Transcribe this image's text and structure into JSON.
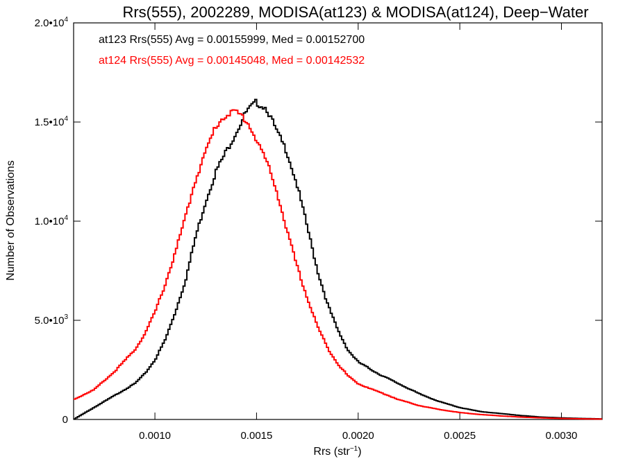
{
  "chart_data": {
    "type": "line",
    "title": "Rrs(555), 2002289, MODISA(at123) & MODISA(at124), Deep−Water",
    "xlabel": "Rrs (str",
    "xlabel_sup": "−1",
    "xlabel_close": ")",
    "ylabel": "Number of Observations",
    "xlim": [
      0.0006,
      0.0032
    ],
    "ylim": [
      0,
      20000
    ],
    "x_ticks": [
      {
        "value": 0.001,
        "label": "0.0010"
      },
      {
        "value": 0.0015,
        "label": "0.0015"
      },
      {
        "value": 0.002,
        "label": "0.0020"
      },
      {
        "value": 0.0025,
        "label": "0.0025"
      },
      {
        "value": 0.003,
        "label": "0.0030"
      }
    ],
    "y_ticks": [
      {
        "value": 0,
        "mant": "0",
        "exp": ""
      },
      {
        "value": 5000,
        "mant": "5.0•10",
        "exp": "3"
      },
      {
        "value": 10000,
        "mant": "1.0•10",
        "exp": "4"
      },
      {
        "value": 15000,
        "mant": "1.5•10",
        "exp": "4"
      },
      {
        "value": 20000,
        "mant": "2.0•10",
        "exp": "4"
      }
    ],
    "annotations": [
      {
        "text": "at123 Rrs(555) Avg = 0.00155999, Med = 0.00152700",
        "color": "#000000"
      },
      {
        "text": "at124 Rrs(555) Avg = 0.00145048, Med = 0.00142532",
        "color": "#ff0000"
      }
    ],
    "series": [
      {
        "color": "#000000",
        "x": [
          0.0006,
          0.0007,
          0.0008,
          0.0009,
          0.00095,
          0.001,
          0.00105,
          0.0011,
          0.00115,
          0.0012,
          0.00125,
          0.0013,
          0.00135,
          0.0014,
          0.00145,
          0.0015,
          0.00155,
          0.0016,
          0.00165,
          0.0017,
          0.00175,
          0.0018,
          0.00185,
          0.0019,
          0.00195,
          0.002,
          0.0021,
          0.0022,
          0.0023,
          0.0024,
          0.0025,
          0.0026,
          0.0027,
          0.0028,
          0.0029,
          0.003,
          0.0031,
          0.0032
        ],
        "y": [
          0,
          600,
          1200,
          1800,
          2300,
          3000,
          4000,
          5400,
          7000,
          9200,
          11000,
          12500,
          13500,
          14500,
          15500,
          16000,
          15700,
          14500,
          13500,
          11800,
          9700,
          7500,
          5800,
          4500,
          3500,
          2900,
          2300,
          1800,
          1300,
          900,
          600,
          400,
          300,
          200,
          120,
          80,
          50,
          30
        ]
      },
      {
        "color": "#ff0000",
        "x": [
          0.0006,
          0.0007,
          0.0008,
          0.0009,
          0.00095,
          0.001,
          0.00105,
          0.0011,
          0.00115,
          0.0012,
          0.00125,
          0.0013,
          0.00135,
          0.0014,
          0.00145,
          0.0015,
          0.00155,
          0.0016,
          0.00165,
          0.0017,
          0.00175,
          0.0018,
          0.00185,
          0.0019,
          0.00195,
          0.002,
          0.0021,
          0.0022,
          0.0023,
          0.0024,
          0.0025,
          0.0026,
          0.0027,
          0.0028,
          0.0029,
          0.003,
          0.0031,
          0.0032
        ],
        "y": [
          1000,
          1500,
          2400,
          3500,
          4300,
          5400,
          6800,
          8400,
          10200,
          12100,
          13500,
          14800,
          15400,
          15500,
          15100,
          14100,
          13000,
          11500,
          9500,
          7700,
          6100,
          4700,
          3600,
          2800,
          2200,
          1800,
          1400,
          1000,
          700,
          500,
          350,
          250,
          180,
          120,
          80,
          50,
          30,
          20
        ]
      }
    ]
  }
}
